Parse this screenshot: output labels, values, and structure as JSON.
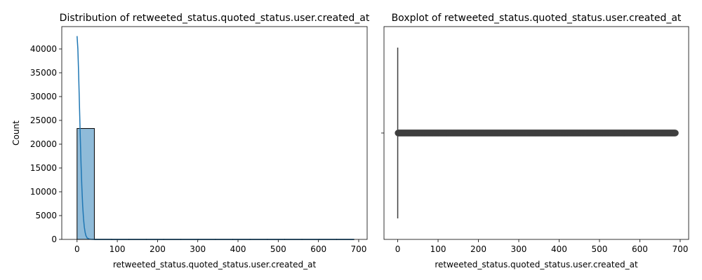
{
  "chart_data": [
    {
      "type": "bar",
      "title": "Distribution of retweeted_status.quoted_status.user.created_at",
      "xlabel": "retweeted_status.quoted_status.user.created_at",
      "ylabel": "Count",
      "xlim": [
        -38,
        721
      ],
      "ylim": [
        0,
        44700
      ],
      "x_ticks": [
        0,
        100,
        200,
        300,
        400,
        500,
        600,
        700
      ],
      "y_ticks": [
        0,
        5000,
        10000,
        15000,
        20000,
        25000,
        30000,
        35000,
        40000
      ],
      "bins": [
        {
          "x0": 0,
          "x1": 43,
          "count": 23300
        },
        {
          "x0": 43,
          "x1": 86,
          "count": 30
        },
        {
          "x0": 86,
          "x1": 129,
          "count": 20
        },
        {
          "x0": 129,
          "x1": 172,
          "count": 20
        },
        {
          "x0": 172,
          "x1": 215,
          "count": 20
        },
        {
          "x0": 215,
          "x1": 258,
          "count": 20
        },
        {
          "x0": 258,
          "x1": 301,
          "count": 20
        },
        {
          "x0": 301,
          "x1": 344,
          "count": 20
        },
        {
          "x0": 344,
          "x1": 387,
          "count": 20
        },
        {
          "x0": 387,
          "x1": 430,
          "count": 20
        },
        {
          "x0": 430,
          "x1": 473,
          "count": 20
        },
        {
          "x0": 473,
          "x1": 516,
          "count": 20
        },
        {
          "x0": 516,
          "x1": 559,
          "count": 20
        },
        {
          "x0": 559,
          "x1": 602,
          "count": 20
        },
        {
          "x0": 602,
          "x1": 645,
          "count": 20
        },
        {
          "x0": 645,
          "x1": 688,
          "count": 20
        }
      ],
      "kde": {
        "x": [
          0,
          2,
          4,
          6,
          8,
          10,
          12,
          14,
          16,
          18,
          20,
          22,
          25,
          30,
          35,
          40,
          50,
          60,
          100,
          200,
          300,
          400,
          500,
          600,
          688
        ],
        "y": [
          42700,
          40000,
          34500,
          28000,
          21500,
          15500,
          10800,
          7000,
          4400,
          2600,
          1500,
          800,
          300,
          80,
          20,
          5,
          0,
          0,
          0,
          0,
          0,
          0,
          0,
          0,
          0
        ]
      },
      "colors": {
        "bar_fill": "#1f77b4",
        "bar_alpha": 0.5,
        "kde_line": "#1f77b4"
      }
    },
    {
      "type": "boxplot",
      "title": "Boxplot of retweeted_status.quoted_status.user.created_at",
      "xlabel": "retweeted_status.quoted_status.user.created_at",
      "xlim": [
        -34,
        721
      ],
      "x_ticks": [
        0,
        100,
        200,
        300,
        400,
        500,
        600,
        700
      ],
      "box": {
        "q1": 0,
        "median": 0,
        "q3": 0,
        "whisker_low": 0,
        "whisker_high": 0
      },
      "outlier_range": [
        1,
        688
      ],
      "colors": {
        "box": "#3f3f3f",
        "outlier": "#3f3f3f"
      }
    }
  ]
}
